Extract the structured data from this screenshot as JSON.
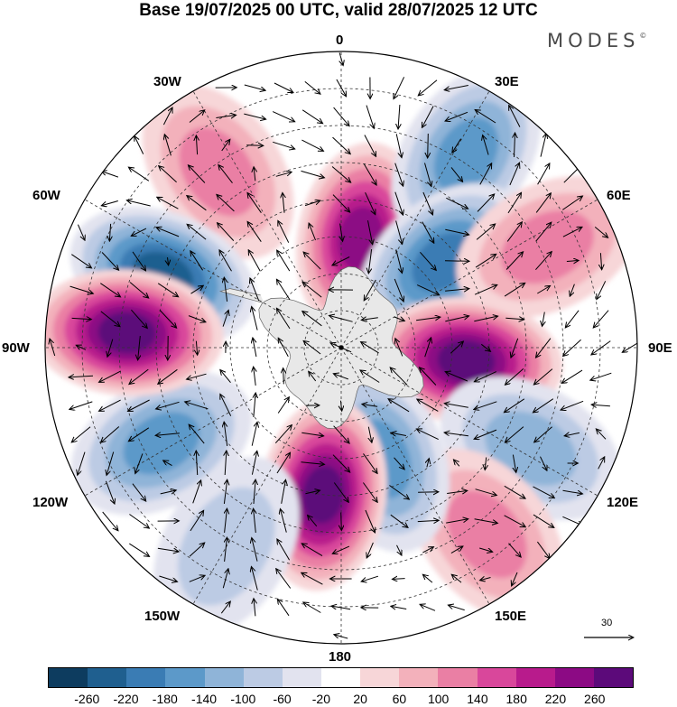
{
  "title": "Base 19/07/2025 00 UTC, valid 28/07/2025 12 UTC",
  "brand": "MODES",
  "brand_mark": "©",
  "longitude_labels": {
    "lon_0": "0",
    "lon_30e": "30E",
    "lon_60e": "60E",
    "lon_90e": "90E",
    "lon_120e": "120E",
    "lon_150e": "150E",
    "lon_180": "180",
    "lon_150w": "150W",
    "lon_120w": "120W",
    "lon_90w": "90W",
    "lon_60w": "60W",
    "lon_30w": "30W"
  },
  "reference_vector": "30",
  "colorbar": {
    "colors": [
      "#0d3c5f",
      "#1f5f8f",
      "#3a7cb4",
      "#5c99c9",
      "#8fb4d8",
      "#bccbe4",
      "#e2e3ef",
      "#ffffff",
      "#f7d6d8",
      "#f3b1bb",
      "#ea7fa4",
      "#d9479b",
      "#b81b8c",
      "#8c0a84",
      "#5c0a7a"
    ],
    "ticks": [
      "-260",
      "-220",
      "-180",
      "-140",
      "-100",
      "-60",
      "-20",
      "20",
      "60",
      "100",
      "140",
      "180",
      "220",
      "260"
    ]
  },
  "field_centers": [
    {
      "name": "positive-center-south-atlantic-30w",
      "sign": "positive",
      "value": 110,
      "lon": -35,
      "colat": 58
    },
    {
      "name": "negative-center-60w",
      "sign": "negative",
      "value": -230,
      "lon": -68,
      "colat": 52
    },
    {
      "name": "positive-center-near-0",
      "sign": "positive",
      "value": 220,
      "lon": 10,
      "colat": 30
    },
    {
      "name": "negative-center-30e",
      "sign": "negative",
      "value": -150,
      "lon": 33,
      "colat": 62
    },
    {
      "name": "negative-center-45e",
      "sign": "negative",
      "value": -170,
      "lon": 50,
      "colat": 36
    },
    {
      "name": "positive-center-60e",
      "sign": "positive",
      "value": 110,
      "lon": 64,
      "colat": 62
    },
    {
      "name": "positive-center-90e",
      "sign": "positive",
      "value": 250,
      "lon": 96,
      "colat": 34
    },
    {
      "name": "negative-center-120e",
      "sign": "negative",
      "value": -110,
      "lon": 118,
      "colat": 58
    },
    {
      "name": "positive-center-150e",
      "sign": "positive",
      "value": 100,
      "lon": 142,
      "colat": 64
    },
    {
      "name": "negative-center-160e",
      "sign": "negative",
      "value": -150,
      "lon": 160,
      "colat": 32
    },
    {
      "name": "positive-center-180",
      "sign": "positive",
      "value": 250,
      "lon": -173,
      "colat": 40
    },
    {
      "name": "negative-center-120w",
      "sign": "negative",
      "value": -150,
      "lon": -118,
      "colat": 55
    },
    {
      "name": "positive-center-90w",
      "sign": "positive",
      "value": 240,
      "lon": -86,
      "colat": 58
    },
    {
      "name": "negative-center-150w",
      "sign": "negative",
      "value": -60,
      "lon": -150,
      "colat": 62
    }
  ]
}
